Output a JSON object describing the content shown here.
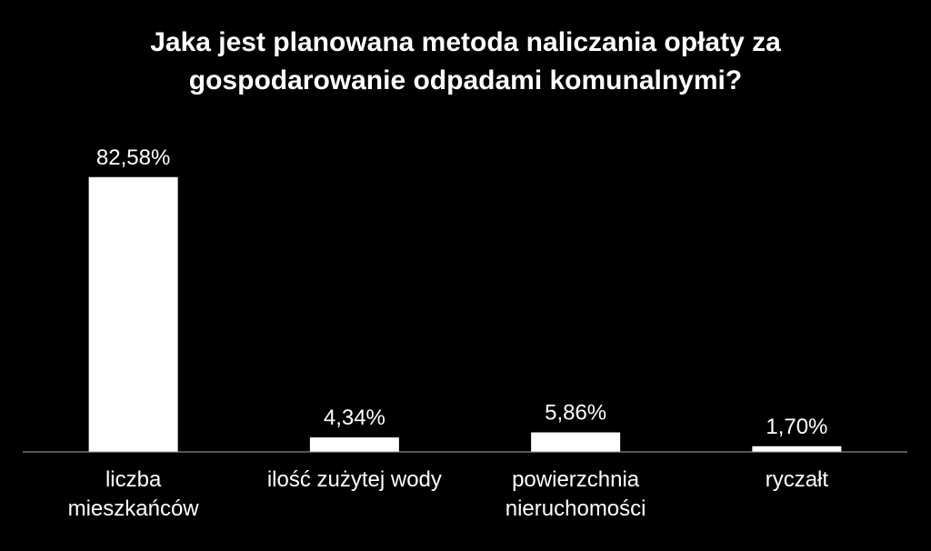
{
  "chart_data": {
    "type": "bar",
    "title": "Jaka jest planowana metoda naliczania opłaty za gospodarowanie odpadami komunalnymi?",
    "categories": [
      "liczba mieszkańców",
      "ilość zużytej wody",
      "powierzchnia nieruchomości",
      "ryczałt"
    ],
    "values": [
      82.58,
      4.34,
      5.86,
      1.7
    ],
    "value_labels": [
      "82,58%",
      "4,34%",
      "5,86%",
      "1,70%"
    ],
    "color": "#ffffff",
    "ylim": [
      0,
      100
    ]
  }
}
